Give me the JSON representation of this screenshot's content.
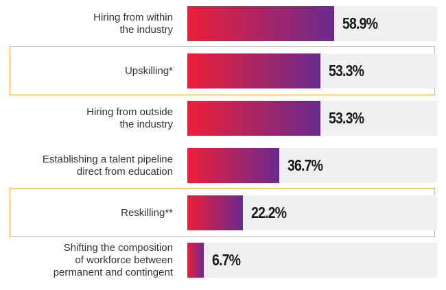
{
  "chart_data": {
    "type": "bar",
    "orientation": "horizontal",
    "categories": [
      "Hiring from within\nthe industry",
      "Upskilling*",
      "Hiring from outside\nthe industry",
      "Establishing a talent pipeline\ndirect from education",
      "Reskilling**",
      "Shifting the composition\nof workforce between\npermanent and contingent"
    ],
    "values": [
      58.9,
      53.3,
      53.3,
      36.7,
      22.2,
      6.7
    ],
    "value_labels": [
      "58.9%",
      "53.3%",
      "53.3%",
      "36.7%",
      "22.2%",
      "6.7%"
    ],
    "xlim": [
      0,
      100
    ],
    "color": [
      "#ec1f38",
      "#6a2a8f"
    ],
    "track_color": "#f0f0f2",
    "highlight": [
      false,
      true,
      false,
      false,
      true,
      false
    ],
    "highlight_color": "#f6a83a"
  }
}
